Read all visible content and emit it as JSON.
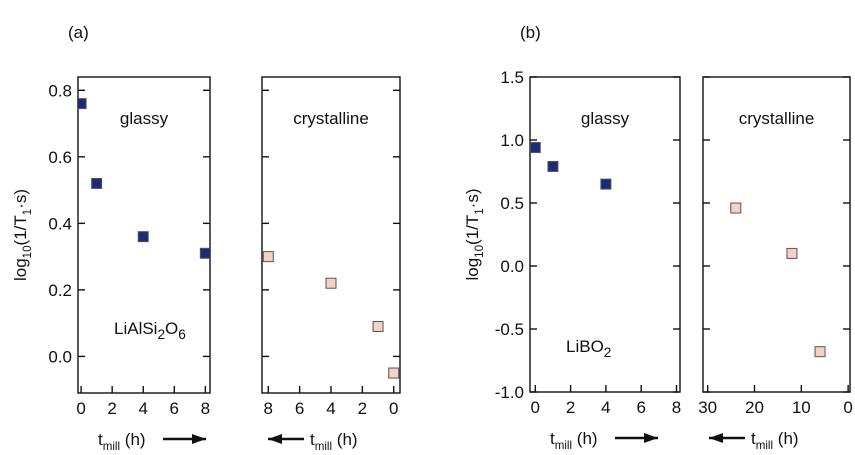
{
  "chart_data": [
    {
      "type": "scatter",
      "panel_label": "(a)",
      "annotation": "glassy",
      "compound": [
        {
          "text": "LiAlSi"
        },
        {
          "text": "2",
          "sub": true
        },
        {
          "text": "O"
        },
        {
          "text": "6",
          "sub": true
        }
      ],
      "ylabel": [
        {
          "text": "log"
        },
        {
          "text": "10",
          "sub": true
        },
        {
          "text": "(1/T"
        },
        {
          "text": "1",
          "sub": true
        },
        {
          "text": "·s)"
        }
      ],
      "xlabel": [
        {
          "text": "t"
        },
        {
          "text": "mill",
          "sub": true
        },
        {
          "text": " (h)"
        }
      ],
      "xlim": [
        -0.2,
        8.3
      ],
      "xticks": [
        0,
        2,
        4,
        6,
        8
      ],
      "ylim": [
        -0.11,
        0.84
      ],
      "yticks": [
        {
          "value": 0,
          "label": "0.0"
        },
        0.2,
        0.4,
        0.6,
        0.8
      ],
      "show_ytick_labels": true,
      "series": [
        {
          "color": "#1c2a78",
          "x": [
            0,
            1,
            4,
            8
          ],
          "values": [
            0.76,
            0.52,
            0.36,
            0.31
          ]
        }
      ]
    },
    {
      "type": "scatter",
      "annotation": "crystalline",
      "xlabel": [
        {
          "text": "t"
        },
        {
          "text": "mill",
          "sub": true
        },
        {
          "text": " (h)"
        }
      ],
      "xlim": [
        8.4,
        -0.4
      ],
      "xticks": [
        8,
        6,
        4,
        2,
        0
      ],
      "ylim": [
        -0.11,
        0.84
      ],
      "yticks": [
        {
          "value": 0,
          "label": "0.0"
        },
        0.2,
        0.4,
        0.6,
        0.8
      ],
      "show_ytick_labels": false,
      "series": [
        {
          "color": "#f4d0c6",
          "x": [
            8,
            4,
            1,
            0
          ],
          "values": [
            0.3,
            0.22,
            0.09,
            -0.05
          ]
        }
      ]
    },
    {
      "type": "scatter",
      "panel_label": "(b)",
      "annotation": "glassy",
      "compound": [
        {
          "text": "LiBO"
        },
        {
          "text": "2",
          "sub": true
        }
      ],
      "ylabel": [
        {
          "text": "log"
        },
        {
          "text": "10",
          "sub": true
        },
        {
          "text": "(1/T"
        },
        {
          "text": "1",
          "sub": true
        },
        {
          "text": "·s)"
        }
      ],
      "xlabel": [
        {
          "text": "t"
        },
        {
          "text": "mill",
          "sub": true
        },
        {
          "text": " (h)"
        }
      ],
      "xlim": [
        -0.3,
        8.2
      ],
      "xticks": [
        0,
        2,
        4,
        6,
        8
      ],
      "ylim": [
        -1.0,
        1.5
      ],
      "yticks": [
        {
          "value": -1,
          "label": "-1.0"
        },
        -0.5,
        {
          "value": 0,
          "label": "0.0"
        },
        0.5,
        {
          "value": 1,
          "label": "1.0"
        },
        1.5
      ],
      "show_ytick_labels": true,
      "series": [
        {
          "color": "#1c2a78",
          "x": [
            0,
            1,
            4
          ],
          "values": [
            0.94,
            0.79,
            0.65
          ]
        }
      ]
    },
    {
      "type": "scatter",
      "annotation": "crystalline",
      "xlabel": [
        {
          "text": "t"
        },
        {
          "text": "mill",
          "sub": true
        },
        {
          "text": " (h)"
        }
      ],
      "xlim": [
        31,
        -0.4
      ],
      "xticks": [
        30,
        20,
        10,
        0
      ],
      "ylim": [
        -1.0,
        1.5
      ],
      "yticks": [
        {
          "value": -1,
          "label": "-1.0"
        },
        -0.5,
        {
          "value": 0,
          "label": "0.0"
        },
        0.5,
        {
          "value": 1,
          "label": "1.0"
        },
        1.5
      ],
      "show_ytick_labels": false,
      "series": [
        {
          "color": "#f4d0c6",
          "x": [
            24,
            12,
            6
          ],
          "values": [
            0.46,
            0.1,
            -0.68
          ]
        }
      ]
    }
  ]
}
